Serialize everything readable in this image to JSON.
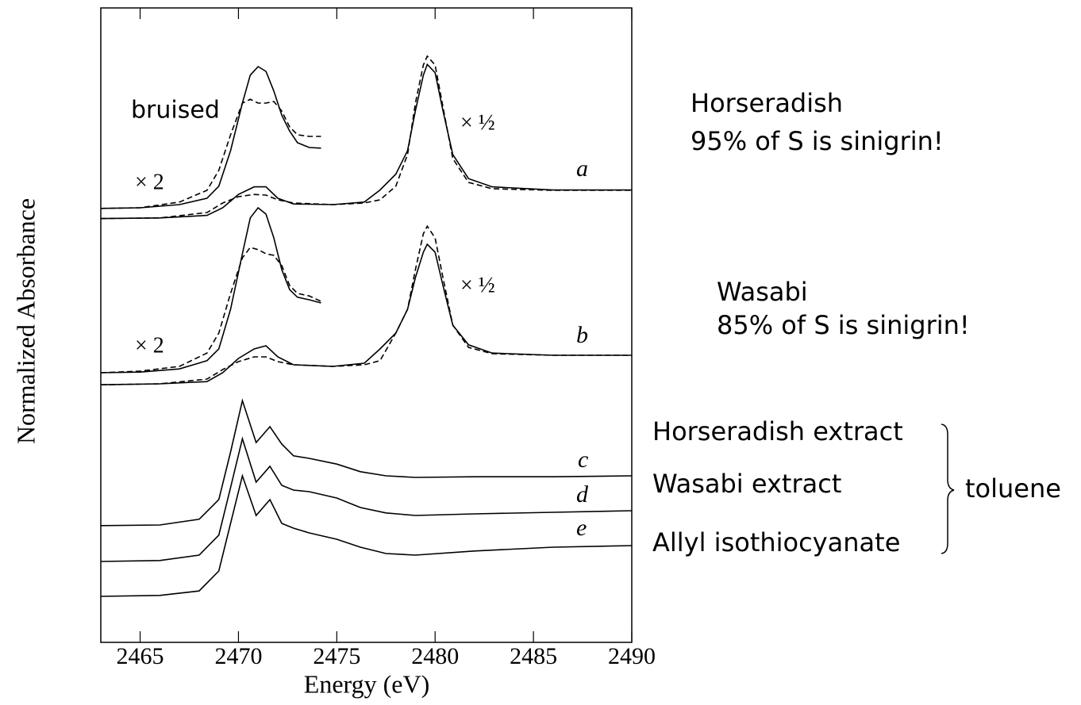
{
  "chart_data": {
    "type": "line",
    "xlabel": "Energy (eV)",
    "ylabel": "Normalized Absorbance",
    "xlim": [
      2463,
      2490
    ],
    "ylim": [
      0,
      100
    ],
    "xticks": [
      2465,
      2470,
      2475,
      2480,
      2485,
      2490
    ],
    "series": [
      {
        "style": "solid",
        "color": "#000000",
        "x": [
          2463,
          2466,
          2468.4,
          2469.2,
          2470,
          2470.8,
          2471.4,
          2472,
          2472.8,
          2474.8,
          2476.4,
          2477.2,
          2478,
          2478.6,
          2479,
          2479.4,
          2479.6,
          2480,
          2480.4,
          2480.9,
          2481.7,
          2482.9,
          2486,
          2490
        ],
        "values": [
          66.8,
          66.9,
          67.3,
          68.5,
          70.6,
          71.8,
          71.8,
          70,
          69.1,
          69,
          69.4,
          71.3,
          73.8,
          77.5,
          83.8,
          89.4,
          91.1,
          89.8,
          83.8,
          76.9,
          73.1,
          71.8,
          71.3,
          71.3
        ]
      },
      {
        "style": "dashed",
        "color": "#000000",
        "x": [
          2463,
          2466,
          2468.4,
          2469.2,
          2470,
          2470.8,
          2471.4,
          2472,
          2472.8,
          2474.8,
          2476.4,
          2477.2,
          2478,
          2478.6,
          2479,
          2479.4,
          2479.6,
          2480,
          2480.4,
          2480.9,
          2481.7,
          2482.9,
          2486,
          2490
        ],
        "values": [
          66.8,
          66.9,
          67.75,
          69.25,
          70.25,
          70.6,
          70.5,
          69.75,
          69.25,
          69,
          69.25,
          69.75,
          71.9,
          76.9,
          85,
          91,
          92.4,
          91,
          84.4,
          76.25,
          72.5,
          71.5,
          71.25,
          71.25
        ]
      },
      {
        "style": "solid",
        "color": "#000000",
        "x": [
          2463,
          2465,
          2467,
          2468.4,
          2469,
          2469.6,
          2470.2,
          2470.6,
          2471,
          2471.4,
          2471.8,
          2472.2,
          2472.6,
          2473,
          2473.6,
          2474.2
        ],
        "values": [
          68.4,
          68.5,
          69,
          70,
          71.9,
          77.5,
          85,
          89.4,
          90.75,
          90,
          86.9,
          83.1,
          80.6,
          78.75,
          78,
          77.9
        ]
      },
      {
        "style": "dashed",
        "color": "#000000",
        "x": [
          2463,
          2465,
          2467,
          2468.4,
          2469,
          2469.6,
          2470.2,
          2470.6,
          2471,
          2471.4,
          2471.8,
          2472.2,
          2472.6,
          2473,
          2473.6,
          2474.2
        ],
        "values": [
          68.4,
          68.5,
          69.4,
          71.25,
          74.4,
          80,
          85,
          85.6,
          85,
          85,
          85.25,
          83.75,
          81.25,
          80,
          79.75,
          79.75
        ]
      },
      {
        "style": "solid",
        "color": "#000000",
        "x": [
          2463,
          2466,
          2468.4,
          2469.2,
          2470,
          2470.8,
          2471.4,
          2472,
          2472.8,
          2474.8,
          2476.4,
          2477.2,
          2478,
          2478.6,
          2479,
          2479.4,
          2479.6,
          2480,
          2480.4,
          2480.9,
          2481.7,
          2482.9,
          2486,
          2490
        ],
        "values": [
          40.6,
          40.75,
          41.1,
          42.5,
          44.75,
          46.25,
          46.75,
          45,
          43.75,
          43.5,
          44,
          46.25,
          48.75,
          52.5,
          57.5,
          61.5,
          62.75,
          61.5,
          56.25,
          50,
          46.9,
          45.6,
          45.25,
          45.25
        ]
      },
      {
        "style": "dashed",
        "color": "#000000",
        "x": [
          2463,
          2466,
          2468.4,
          2469.2,
          2470,
          2470.8,
          2471.4,
          2472,
          2472.8,
          2474.8,
          2476.4,
          2477.2,
          2478,
          2478.6,
          2479,
          2479.4,
          2479.6,
          2480,
          2480.4,
          2480.9,
          2481.7,
          2482.9,
          2486,
          2490
        ],
        "values": [
          40.6,
          40.75,
          41.5,
          43,
          44.25,
          45,
          45,
          44.25,
          43.75,
          43.5,
          43.75,
          44.4,
          48.75,
          52.5,
          58.75,
          64.4,
          65.6,
          63.75,
          57.5,
          50,
          46.5,
          45.5,
          45.25,
          45.25
        ]
      },
      {
        "style": "solid",
        "color": "#000000",
        "x": [
          2463,
          2465,
          2467,
          2468.4,
          2469,
          2469.6,
          2470.2,
          2470.6,
          2471,
          2471.4,
          2471.8,
          2472.2,
          2472.6,
          2473,
          2473.6,
          2474.2
        ],
        "values": [
          42.5,
          42.6,
          43.1,
          44.4,
          46.25,
          52.5,
          61.25,
          66.9,
          68.5,
          67.5,
          63.75,
          58.75,
          55.6,
          54.4,
          54,
          53.5
        ]
      },
      {
        "style": "dashed",
        "color": "#000000",
        "x": [
          2463,
          2465,
          2467,
          2468.4,
          2469,
          2469.6,
          2470.2,
          2470.6,
          2471,
          2471.4,
          2471.8,
          2472.2,
          2472.6,
          2473,
          2473.6,
          2474.2
        ],
        "values": [
          42.5,
          42.75,
          43.5,
          45.6,
          48.75,
          55,
          60.6,
          62.25,
          61.9,
          61.25,
          61,
          59.4,
          56.25,
          55,
          54.6,
          53.75
        ]
      },
      {
        "style": "solid",
        "color": "#000000",
        "x": [
          2463,
          2466,
          2468,
          2469,
          2469.6,
          2470.2,
          2470.9,
          2471.6,
          2472.2,
          2472.8,
          2473.6,
          2475,
          2476.2,
          2477.5,
          2479,
          2482,
          2486,
          2490
        ],
        "values": [
          18.4,
          18.5,
          19.4,
          22.5,
          30,
          38.1,
          31.5,
          34,
          31.25,
          29.4,
          29,
          28.1,
          26.9,
          26.25,
          26,
          26.1,
          26.1,
          26.25
        ]
      },
      {
        "style": "solid",
        "color": "#000000",
        "x": [
          2463,
          2466,
          2468,
          2469,
          2469.6,
          2470.2,
          2470.9,
          2471.6,
          2472.2,
          2472.8,
          2473.6,
          2475,
          2476.2,
          2477.5,
          2479,
          2482,
          2486,
          2490
        ],
        "values": [
          12.75,
          12.9,
          13.75,
          16.9,
          24.4,
          32.1,
          25.25,
          27.75,
          24.75,
          24,
          23.75,
          22.75,
          21.25,
          20.4,
          20,
          20.25,
          20.5,
          20.75
        ]
      },
      {
        "style": "solid",
        "color": "#000000",
        "x": [
          2463,
          2466,
          2468,
          2469,
          2469.6,
          2470.2,
          2470.9,
          2471.6,
          2472.2,
          2472.8,
          2473.6,
          2475,
          2476.2,
          2477.5,
          2479,
          2482,
          2486,
          2490
        ],
        "values": [
          7.25,
          7.4,
          8.1,
          11.25,
          18.75,
          26.25,
          20,
          22.5,
          18.75,
          18,
          17.25,
          16.25,
          15,
          14,
          13.75,
          14.4,
          15,
          15.25
        ]
      }
    ],
    "annotations": [
      "bruised",
      "× 2",
      "× ½",
      "a",
      "× 2",
      "× ½",
      "b",
      "c",
      "d",
      "e",
      "Horseradish",
      "95% of S is sinigrin!",
      "Wasabi",
      "85% of S is sinigrin!",
      "Horseradish extract",
      "Wasabi extract",
      "Allyl isothiocyanate",
      "toluene"
    ]
  }
}
